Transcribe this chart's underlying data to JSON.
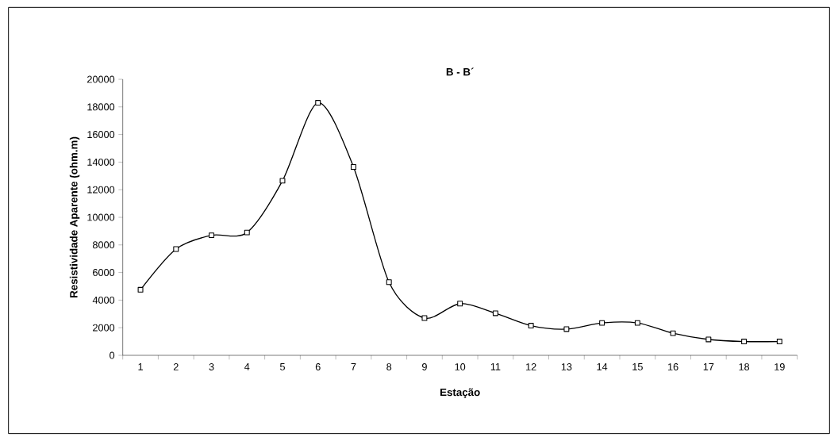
{
  "chart_data": {
    "type": "line",
    "title": "B - B´",
    "xlabel": "Estação",
    "ylabel": "Resistividade Aparente (ohm.m)",
    "categories": [
      "1",
      "2",
      "3",
      "4",
      "5",
      "6",
      "7",
      "8",
      "9",
      "10",
      "11",
      "12",
      "13",
      "14",
      "15",
      "16",
      "17",
      "18",
      "19"
    ],
    "series": [
      {
        "color": "#000000",
        "values": [
          4750,
          7700,
          8700,
          8900,
          12650,
          18300,
          13650,
          5300,
          2700,
          3750,
          3050,
          2150,
          1900,
          2350,
          2350,
          1600,
          1150,
          1000,
          1000
        ]
      }
    ],
    "ylim": [
      0,
      20000
    ],
    "yticks": [
      0,
      2000,
      4000,
      6000,
      8000,
      10000,
      12000,
      14000,
      16000,
      18000,
      20000
    ],
    "marker": "square",
    "line_style": "solid",
    "grid": false
  }
}
